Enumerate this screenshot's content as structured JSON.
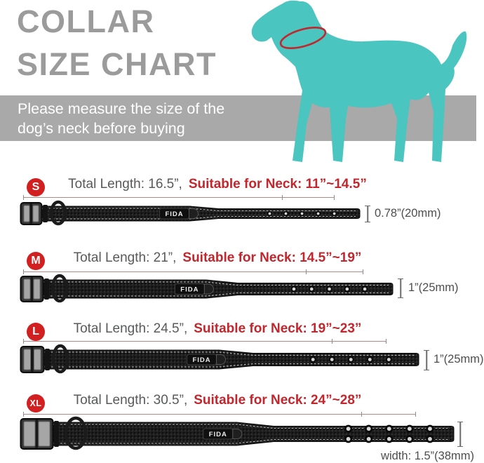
{
  "header": {
    "title_line1": "COLLAR",
    "title_line2": "SIZE CHART",
    "banner_line1": "Please measure the size of the",
    "banner_line2": "dog’s neck before buying"
  },
  "brand": {
    "collar_label": "FIDA"
  },
  "colors": {
    "accent_red": "#c1272d",
    "badge_red": "#d1201f",
    "dog_teal": "#4ac5bf",
    "title_gray": "#9b9b9b",
    "banner_gray": "#a9a9a9",
    "spec_text_gray": "#58595b",
    "width_label_gray": "#4d4d4d"
  },
  "sizes": [
    {
      "label": "S",
      "total_text": "Total Length: 16.5”,",
      "neck_text": "Suitable for Neck: 11”~14.5”",
      "width_text": "0.78”(20mm)",
      "total_length_in": 16.5,
      "neck_min_in": 11,
      "neck_max_in": 14.5,
      "width_in": 0.78,
      "width_mm": 20
    },
    {
      "label": "M",
      "total_text": "Total Length: 21”,",
      "neck_text": "Suitable for Neck: 14.5”~19”",
      "width_text": "1”(25mm)",
      "total_length_in": 21,
      "neck_min_in": 14.5,
      "neck_max_in": 19,
      "width_in": 1,
      "width_mm": 25
    },
    {
      "label": "L",
      "total_text": "Total Length: 24.5”,",
      "neck_text": "Suitable for Neck: 19”~23”",
      "width_text": "1”(25mm)",
      "total_length_in": 24.5,
      "neck_min_in": 19,
      "neck_max_in": 23,
      "width_in": 1,
      "width_mm": 25
    },
    {
      "label": "XL",
      "total_text": "Total Length: 30.5”,",
      "neck_text": "Suitable for Neck: 24”~28”",
      "width_text": "width: 1.5”(38mm)",
      "total_length_in": 30.5,
      "neck_min_in": 24,
      "neck_max_in": 28,
      "width_in": 1.5,
      "width_mm": 38
    }
  ]
}
